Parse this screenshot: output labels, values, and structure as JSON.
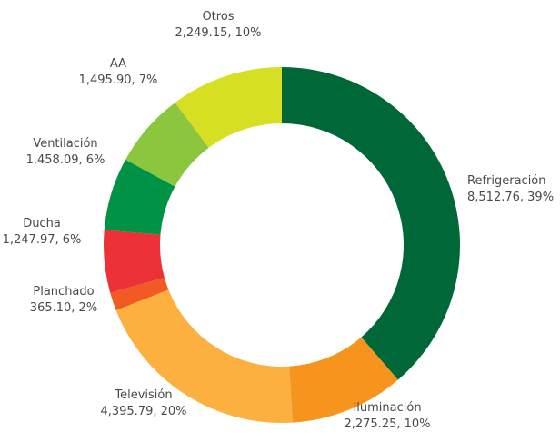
{
  "chart_data": {
    "type": "pie",
    "donut": true,
    "title": "",
    "legend": "none",
    "slices": [
      {
        "category": "Refrigeración",
        "value": 8512.76,
        "value_label": "8,512.76",
        "percent_label": "39%",
        "color": "#006838"
      },
      {
        "category": "Iluminación",
        "value": 2275.25,
        "value_label": "2,275.25",
        "percent_label": "10%",
        "color": "#f7941d"
      },
      {
        "category": "Televisión",
        "value": 4395.79,
        "value_label": "4,395.79",
        "percent_label": "20%",
        "color": "#fbb040"
      },
      {
        "category": "Planchado",
        "value": 365.1,
        "value_label": "365.10",
        "percent_label": "2%",
        "color": "#f15a24"
      },
      {
        "category": "Ducha",
        "value": 1247.97,
        "value_label": "1,247.97",
        "percent_label": "6%",
        "color": "#ed3237"
      },
      {
        "category": "Ventilación",
        "value": 1458.09,
        "value_label": "1,458.09",
        "percent_label": "6%",
        "color": "#009245"
      },
      {
        "category": "AA",
        "value": 1495.9,
        "value_label": "1,495.90",
        "percent_label": "7%",
        "color": "#8cc63f"
      },
      {
        "category": "Otros",
        "value": 2249.15,
        "value_label": "2,249.15",
        "percent_label": "10%",
        "color": "#d7df23"
      }
    ]
  }
}
